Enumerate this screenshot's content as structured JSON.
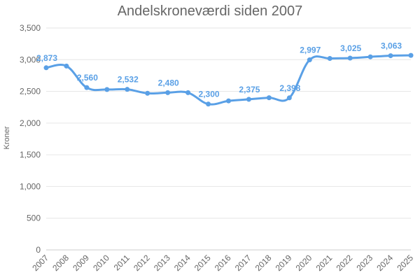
{
  "chart_data": {
    "type": "line",
    "title": "Andelskroneværdi siden 2007",
    "xlabel": "",
    "ylabel": "Kroner",
    "ylim": [
      0,
      3500
    ],
    "yticks": [
      0,
      500,
      1000,
      1500,
      2000,
      2500,
      3000,
      3500
    ],
    "ytick_labels": [
      "0",
      "500",
      "1,000",
      "1,500",
      "2,000",
      "2,500",
      "3,000",
      "3,500"
    ],
    "grid": true,
    "legend": "none",
    "line_color": "#5aa0e6",
    "categories": [
      "2007",
      "2008",
      "2009",
      "2010",
      "2011",
      "2012",
      "2013",
      "2014",
      "2015",
      "2016",
      "2017",
      "2018",
      "2019",
      "2020",
      "2021",
      "2022",
      "2023",
      "2024",
      "2025"
    ],
    "values": [
      2873,
      2900,
      2560,
      2530,
      2532,
      2470,
      2480,
      2480,
      2300,
      2350,
      2375,
      2400,
      2398,
      2997,
      3020,
      3025,
      3045,
      3063,
      3068
    ],
    "data_labels": [
      {
        "index": 0,
        "text": "2,873"
      },
      {
        "index": 2,
        "text": "2,560"
      },
      {
        "index": 4,
        "text": "2,532"
      },
      {
        "index": 6,
        "text": "2,480"
      },
      {
        "index": 8,
        "text": "2,300"
      },
      {
        "index": 10,
        "text": "2,375"
      },
      {
        "index": 12,
        "text": "2,398"
      },
      {
        "index": 13,
        "text": "2,997"
      },
      {
        "index": 15,
        "text": "3,025"
      },
      {
        "index": 17,
        "text": "3,063"
      }
    ]
  }
}
